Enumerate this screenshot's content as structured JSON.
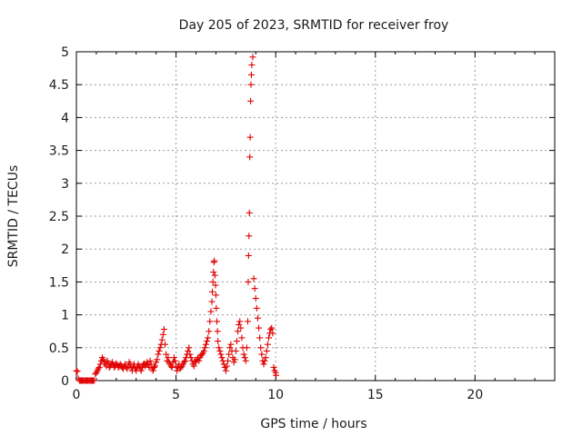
{
  "chart_data": {
    "type": "scatter",
    "title": "Day 205 of 2023, SRMTID for receiver froy",
    "xlabel": "GPS time / hours",
    "ylabel": "SRMTID / TECUs",
    "xlim": [
      0,
      24
    ],
    "ylim": [
      0,
      5
    ],
    "xticks": [
      0,
      5,
      10,
      15,
      20
    ],
    "xtick_labels": [
      "0",
      "5",
      "10",
      "15",
      "20"
    ],
    "yticks": [
      0,
      0.5,
      1,
      1.5,
      2,
      2.5,
      3,
      3.5,
      4,
      4.5,
      5
    ],
    "ytick_labels": [
      "0",
      "0.5",
      "1",
      "1.5",
      "2",
      "2.5",
      "3",
      "3.5",
      "4",
      "4.5",
      "5"
    ],
    "grid": true,
    "marker": "+",
    "color": "#e00000",
    "series": [
      {
        "name": "SRMTID",
        "x": [
          0.0,
          0.05,
          0.1,
          0.15,
          0.2,
          0.25,
          0.3,
          0.35,
          0.4,
          0.45,
          0.5,
          0.55,
          0.6,
          0.65,
          0.7,
          0.75,
          0.8,
          0.85,
          0.9,
          0.95,
          1.0,
          1.05,
          1.1,
          1.15,
          1.2,
          1.25,
          1.3,
          1.35,
          1.4,
          1.45,
          1.5,
          1.55,
          1.6,
          1.65,
          1.7,
          1.75,
          1.8,
          1.85,
          1.9,
          1.95,
          2.0,
          2.05,
          2.1,
          2.15,
          2.2,
          2.25,
          2.3,
          2.35,
          2.4,
          2.45,
          2.5,
          2.55,
          2.6,
          2.65,
          2.7,
          2.75,
          2.8,
          2.85,
          2.9,
          2.95,
          3.0,
          3.05,
          3.1,
          3.15,
          3.2,
          3.25,
          3.3,
          3.35,
          3.4,
          3.45,
          3.5,
          3.55,
          3.6,
          3.65,
          3.7,
          3.75,
          3.8,
          3.85,
          3.9,
          3.95,
          4.0,
          4.05,
          4.1,
          4.15,
          4.2,
          4.25,
          4.3,
          4.35,
          4.4,
          4.45,
          4.5,
          4.55,
          4.6,
          4.65,
          4.7,
          4.75,
          4.8,
          4.85,
          4.9,
          4.95,
          5.0,
          5.05,
          5.1,
          5.15,
          5.2,
          5.25,
          5.3,
          5.35,
          5.4,
          5.45,
          5.5,
          5.55,
          5.6,
          5.65,
          5.7,
          5.75,
          5.8,
          5.85,
          5.9,
          5.95,
          6.0,
          6.05,
          6.1,
          6.15,
          6.2,
          6.25,
          6.3,
          6.35,
          6.4,
          6.45,
          6.5,
          6.55,
          6.6,
          6.65,
          6.7,
          6.75,
          6.8,
          6.82,
          6.85,
          6.88,
          6.9,
          6.92,
          6.95,
          6.98,
          7.0,
          7.02,
          7.05,
          7.08,
          7.1,
          7.15,
          7.2,
          7.25,
          7.3,
          7.35,
          7.4,
          7.45,
          7.5,
          7.55,
          7.6,
          7.65,
          7.7,
          7.75,
          7.8,
          7.85,
          7.9,
          7.95,
          8.0,
          8.05,
          8.1,
          8.15,
          8.2,
          8.25,
          8.3,
          8.35,
          8.4,
          8.45,
          8.5,
          8.55,
          8.6,
          8.62,
          8.64,
          8.66,
          8.68,
          8.7,
          8.72,
          8.74,
          8.76,
          8.78,
          8.8,
          8.85,
          8.9,
          8.95,
          9.0,
          9.05,
          9.1,
          9.15,
          9.2,
          9.25,
          9.3,
          9.35,
          9.4,
          9.45,
          9.5,
          9.55,
          9.6,
          9.65,
          9.7,
          9.75,
          9.8,
          9.85,
          9.9,
          9.95,
          10.0,
          10.02
        ],
        "y": [
          0.15,
          0.14,
          0.03,
          0.0,
          0.0,
          0.0,
          0.0,
          0.0,
          0.0,
          0.0,
          0.0,
          0.0,
          0.0,
          0.0,
          0.0,
          0.0,
          0.0,
          0.0,
          0.0,
          0.1,
          0.12,
          0.15,
          0.18,
          0.2,
          0.25,
          0.3,
          0.35,
          0.32,
          0.28,
          0.25,
          0.22,
          0.3,
          0.26,
          0.2,
          0.22,
          0.25,
          0.28,
          0.24,
          0.2,
          0.22,
          0.26,
          0.24,
          0.2,
          0.22,
          0.25,
          0.23,
          0.2,
          0.18,
          0.22,
          0.25,
          0.2,
          0.18,
          0.22,
          0.28,
          0.25,
          0.2,
          0.15,
          0.22,
          0.25,
          0.18,
          0.15,
          0.2,
          0.25,
          0.22,
          0.18,
          0.15,
          0.2,
          0.24,
          0.26,
          0.22,
          0.25,
          0.28,
          0.24,
          0.2,
          0.3,
          0.25,
          0.18,
          0.15,
          0.2,
          0.22,
          0.28,
          0.32,
          0.4,
          0.45,
          0.5,
          0.55,
          0.62,
          0.7,
          0.78,
          0.55,
          0.4,
          0.3,
          0.35,
          0.28,
          0.25,
          0.22,
          0.2,
          0.28,
          0.35,
          0.3,
          0.22,
          0.15,
          0.2,
          0.25,
          0.18,
          0.2,
          0.22,
          0.25,
          0.28,
          0.3,
          0.35,
          0.4,
          0.45,
          0.5,
          0.4,
          0.35,
          0.3,
          0.25,
          0.22,
          0.3,
          0.28,
          0.32,
          0.35,
          0.3,
          0.35,
          0.38,
          0.4,
          0.42,
          0.45,
          0.5,
          0.55,
          0.6,
          0.65,
          0.75,
          0.9,
          1.05,
          1.2,
          1.35,
          1.5,
          1.65,
          1.8,
          1.82,
          1.6,
          1.45,
          1.3,
          1.1,
          0.9,
          0.75,
          0.6,
          0.5,
          0.45,
          0.4,
          0.35,
          0.3,
          0.25,
          0.2,
          0.15,
          0.22,
          0.3,
          0.4,
          0.5,
          0.55,
          0.45,
          0.35,
          0.28,
          0.32,
          0.45,
          0.6,
          0.75,
          0.85,
          0.9,
          0.8,
          0.65,
          0.5,
          0.4,
          0.35,
          0.3,
          0.5,
          0.9,
          1.5,
          1.9,
          2.2,
          2.55,
          3.4,
          3.7,
          4.25,
          4.5,
          4.65,
          4.8,
          4.92,
          1.55,
          1.4,
          1.25,
          1.1,
          0.95,
          0.8,
          0.65,
          0.5,
          0.4,
          0.3,
          0.25,
          0.3,
          0.35,
          0.45,
          0.55,
          0.65,
          0.72,
          0.78,
          0.8,
          0.72,
          0.2,
          0.15,
          0.12,
          0.08
        ]
      }
    ]
  }
}
